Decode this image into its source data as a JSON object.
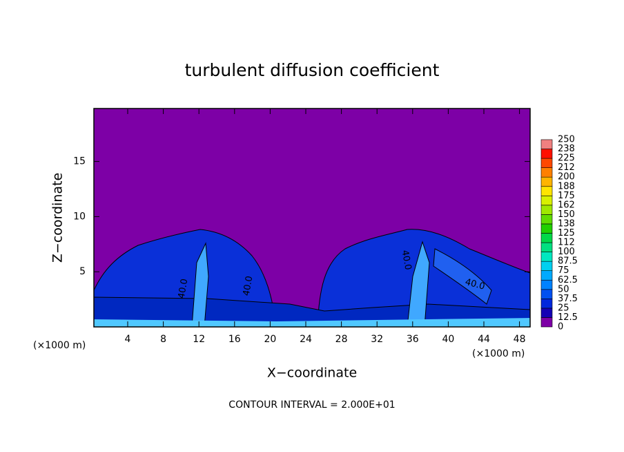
{
  "chart_data": {
    "type": "contour",
    "title": "turbulent diffusion coefficient",
    "xlabel": "X−coordinate",
    "ylabel": "Z−coordinate",
    "xunit_left": "(×1000 m)",
    "xunit_right": "(×1000 m)",
    "footnote": "CONTOUR INTERVAL = 2.000E+01",
    "xlim": [
      0,
      49
    ],
    "ylim": [
      0,
      19.8
    ],
    "xticks": [
      4,
      8,
      12,
      16,
      20,
      24,
      28,
      32,
      36,
      40,
      44,
      48
    ],
    "yticks": [
      5,
      10,
      15
    ],
    "contour_labels": [
      "40.0",
      "40.0",
      "40.0",
      "40.0"
    ],
    "colorbar": {
      "levels": [
        0,
        12.5,
        25,
        37.5,
        50,
        62.5,
        75,
        87.5,
        100,
        112,
        125,
        138,
        150,
        162,
        175,
        188,
        200,
        212,
        225,
        238,
        250
      ],
      "colors": [
        "#7d00a6",
        "#1400b4",
        "#0028dc",
        "#0050f0",
        "#0082ff",
        "#00aaff",
        "#00d0f0",
        "#00e8c0",
        "#00e080",
        "#00d848",
        "#20d000",
        "#60dc00",
        "#a0e800",
        "#d8f000",
        "#ffe400",
        "#ffb400",
        "#ff8000",
        "#ff4800",
        "#ff1000",
        "#f08080"
      ]
    }
  }
}
